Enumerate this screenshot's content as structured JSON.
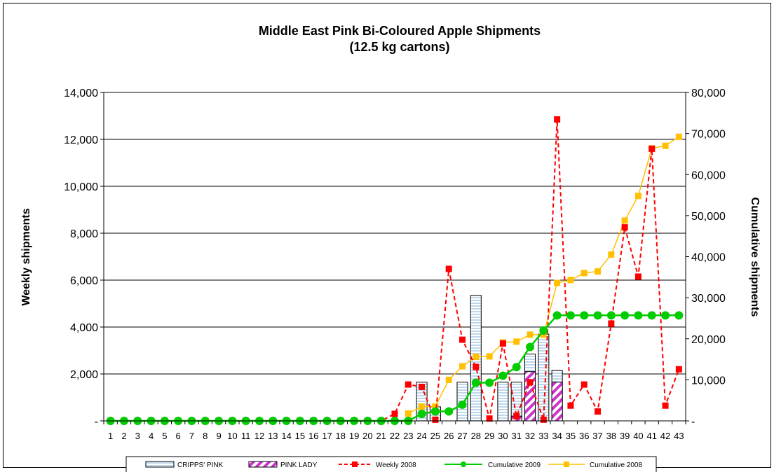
{
  "chart_data": {
    "type": "bar",
    "title": "Middle East Pink Bi-Coloured Apple Shipments",
    "subtitle": "(12.5 kg cartons)",
    "ylabel": "Weekly shipments",
    "y2label": "Cumulative shipments",
    "ylim": [
      0,
      14000
    ],
    "y2lim": [
      0,
      80000
    ],
    "yticks": [
      "-",
      "2,000",
      "4,000",
      "6,000",
      "8,000",
      "10,000",
      "12,000",
      "14,000"
    ],
    "y2ticks": [
      "-",
      "10,000",
      "20,000",
      "30,000",
      "40,000",
      "50,000",
      "60,000",
      "70,000",
      "80,000"
    ],
    "categories": [
      "1",
      "2",
      "3",
      "4",
      "5",
      "6",
      "7",
      "8",
      "9",
      "10",
      "11",
      "12",
      "13",
      "14",
      "15",
      "16",
      "17",
      "18",
      "19",
      "20",
      "21",
      "22",
      "23",
      "24",
      "25",
      "26",
      "27",
      "28",
      "29",
      "30",
      "31",
      "32",
      "33",
      "34",
      "35",
      "36",
      "37",
      "38",
      "39",
      "40",
      "41",
      "42",
      "43"
    ],
    "legend_position": "bottom",
    "grid": true,
    "series": [
      {
        "name": "CRIPPS' PINK",
        "type": "bar",
        "axis": "left",
        "color": "#bdd7ee",
        "values": [
          0,
          0,
          0,
          0,
          0,
          0,
          0,
          0,
          0,
          0,
          0,
          0,
          0,
          0,
          0,
          0,
          0,
          0,
          0,
          0,
          0,
          0,
          0,
          1650,
          600,
          0,
          1650,
          5350,
          0,
          1650,
          1650,
          2850,
          3700,
          2150,
          0,
          0,
          0,
          0,
          0,
          0,
          0,
          0,
          0
        ]
      },
      {
        "name": "PINK LADY",
        "type": "bar",
        "axis": "left",
        "color": "#cc33cc",
        "values": [
          0,
          0,
          0,
          0,
          0,
          0,
          0,
          0,
          0,
          0,
          0,
          0,
          0,
          0,
          0,
          0,
          0,
          0,
          0,
          0,
          0,
          0,
          0,
          0,
          0,
          0,
          0,
          0,
          0,
          0,
          200,
          2100,
          0,
          1650,
          0,
          0,
          0,
          0,
          0,
          0,
          0,
          0,
          0
        ]
      },
      {
        "name": "Weekly 2008",
        "type": "line",
        "axis": "left",
        "color": "#ff0000",
        "dashed": true,
        "values": [
          0,
          0,
          0,
          0,
          0,
          0,
          0,
          0,
          0,
          0,
          0,
          0,
          0,
          0,
          0,
          0,
          0,
          0,
          0,
          0,
          0,
          300,
          1550,
          1450,
          50,
          6480,
          3460,
          2300,
          100,
          3300,
          200,
          1650,
          50,
          12850,
          650,
          1550,
          400,
          4150,
          8250,
          6150,
          11600,
          650,
          2200
        ]
      },
      {
        "name": "Cumulative 2009",
        "type": "line",
        "axis": "right",
        "color": "#00cc00",
        "values": [
          0,
          0,
          0,
          0,
          0,
          0,
          0,
          0,
          0,
          0,
          0,
          0,
          0,
          0,
          0,
          0,
          0,
          0,
          0,
          0,
          0,
          0,
          0,
          1700,
          2300,
          2300,
          3950,
          9300,
          9300,
          11000,
          13100,
          18000,
          22000,
          25700,
          25700,
          25700,
          25700,
          25700,
          25700,
          25700,
          25700,
          25700,
          25700
        ]
      },
      {
        "name": "Cumulative 2008",
        "type": "line",
        "axis": "right",
        "color": "#ffc000",
        "values": [
          null,
          null,
          null,
          null,
          null,
          null,
          null,
          null,
          null,
          null,
          null,
          null,
          null,
          null,
          null,
          null,
          null,
          null,
          null,
          null,
          null,
          null,
          1800,
          3500,
          3500,
          10000,
          13300,
          15600,
          15700,
          19100,
          19300,
          21000,
          21000,
          33600,
          34300,
          36000,
          36400,
          40500,
          48800,
          54800,
          66400,
          67000,
          69200
        ]
      }
    ]
  }
}
